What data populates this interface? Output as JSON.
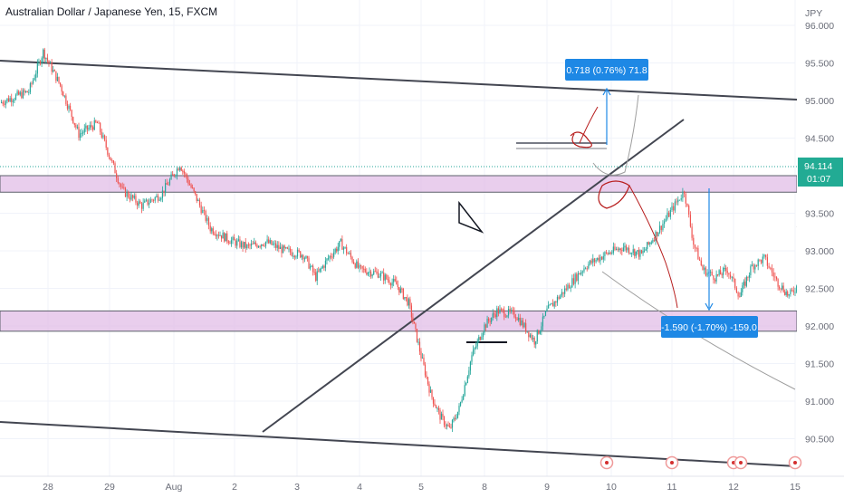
{
  "header": {
    "title": "Australian Dollar / Japanese Yen, 15, FXCM"
  },
  "colors": {
    "up": "#26a69a",
    "down": "#ef5350",
    "zone": "#e1bee7",
    "trend": "#434651",
    "drawing": "#b71c1c",
    "measure": "#1e88e5",
    "price_badge": "#22ab94"
  },
  "chart_data": {
    "type": "candlestick",
    "symbol": "AUDJPY",
    "timeframe": "15",
    "currency": "JPY",
    "x_ticks": [
      "28",
      "29",
      "Aug",
      "2",
      "3",
      "4",
      "5",
      "8",
      "9",
      "10",
      "11",
      "12",
      "15"
    ],
    "y_ticks": [
      "96.000",
      "95.500",
      "95.000",
      "94.500",
      "94.000",
      "93.500",
      "93.000",
      "92.500",
      "92.000",
      "91.500",
      "91.000",
      "90.500"
    ],
    "ylim": [
      90.2,
      96.1
    ],
    "last_price": "94.114",
    "countdown": "01:07",
    "price_path": [
      [
        0,
        94.97
      ],
      [
        0.3,
        95.05
      ],
      [
        0.6,
        95.12
      ],
      [
        0.9,
        95.65
      ],
      [
        1.2,
        95.2
      ],
      [
        1.5,
        94.55
      ],
      [
        1.8,
        94.7
      ],
      [
        2.2,
        93.8
      ],
      [
        2.5,
        93.6
      ],
      [
        2.8,
        93.75
      ],
      [
        3.1,
        94.15
      ],
      [
        3.4,
        93.65
      ],
      [
        3.6,
        93.3
      ],
      [
        3.9,
        93.15
      ],
      [
        4.2,
        93.05
      ],
      [
        4.5,
        93.12
      ],
      [
        4.8,
        93.0
      ],
      [
        5.1,
        92.95
      ],
      [
        5.3,
        92.65
      ],
      [
        5.5,
        92.9
      ],
      [
        5.7,
        93.1
      ],
      [
        6.0,
        92.75
      ],
      [
        6.3,
        92.7
      ],
      [
        6.6,
        92.55
      ],
      [
        6.8,
        92.3
      ],
      [
        7.0,
        91.6
      ],
      [
        7.15,
        91.1
      ],
      [
        7.3,
        90.8
      ],
      [
        7.45,
        90.62
      ],
      [
        7.6,
        90.9
      ],
      [
        7.8,
        91.6
      ],
      [
        8.0,
        92.0
      ],
      [
        8.2,
        92.2
      ],
      [
        8.5,
        92.15
      ],
      [
        8.8,
        91.8
      ],
      [
        9.0,
        92.2
      ],
      [
        9.3,
        92.5
      ],
      [
        9.6,
        92.8
      ],
      [
        9.9,
        92.95
      ],
      [
        10.2,
        93.05
      ],
      [
        10.5,
        92.95
      ],
      [
        10.8,
        93.3
      ],
      [
        11.0,
        93.55
      ],
      [
        11.2,
        93.8
      ],
      [
        11.35,
        93.1
      ],
      [
        11.5,
        92.75
      ],
      [
        11.7,
        92.65
      ],
      [
        11.9,
        92.75
      ],
      [
        12.1,
        92.4
      ],
      [
        12.3,
        92.8
      ],
      [
        12.5,
        92.9
      ],
      [
        12.7,
        92.6
      ],
      [
        12.9,
        92.4
      ],
      [
        13.05,
        92.55
      ],
      [
        13.2,
        92.9
      ],
      [
        13.35,
        93.3
      ],
      [
        13.55,
        93.45
      ],
      [
        13.75,
        93.2
      ],
      [
        13.95,
        93.3
      ],
      [
        14.15,
        93.55
      ],
      [
        14.35,
        93.75
      ],
      [
        14.55,
        94.0
      ],
      [
        14.75,
        93.92
      ],
      [
        14.95,
        94.15
      ],
      [
        15.15,
        94.2
      ],
      [
        15.35,
        94.28
      ],
      [
        15.55,
        94.2
      ],
      [
        15.75,
        94.3
      ],
      [
        15.95,
        94.0
      ],
      [
        16.15,
        94.25
      ],
      [
        16.35,
        94.15
      ],
      [
        16.5,
        94.11
      ]
    ],
    "zones": [
      {
        "from": 93.78,
        "to": 94.0
      },
      {
        "from": 91.93,
        "to": 92.2
      }
    ],
    "annotations": {
      "up_target": "0.718 (0.76%) 71.8",
      "down_target": "-1.590 (-1.70%) -159.0"
    }
  }
}
